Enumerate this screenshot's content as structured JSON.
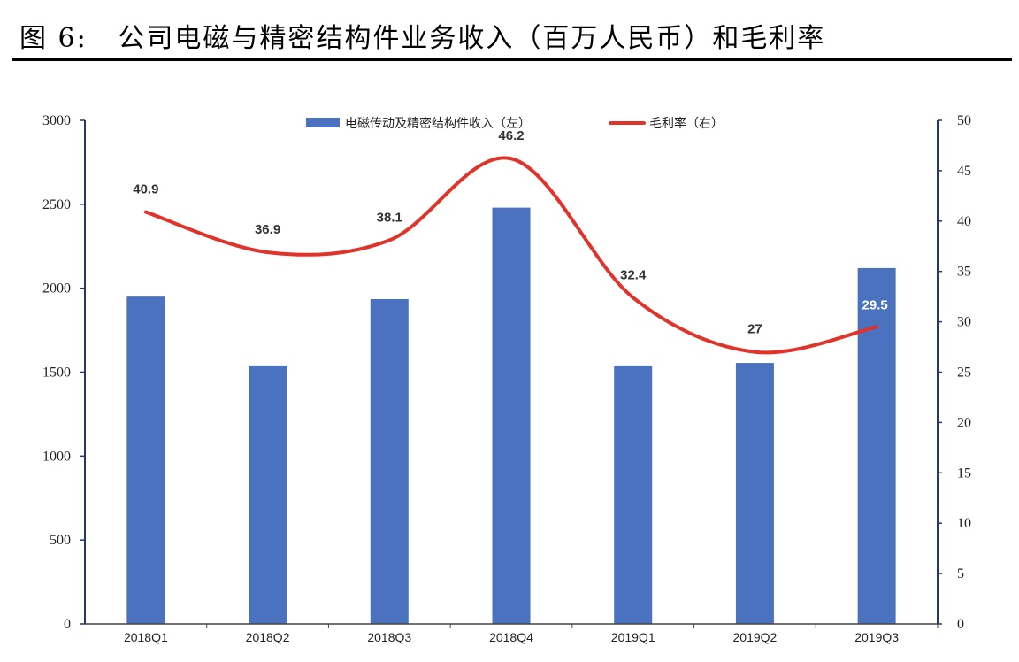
{
  "figure": {
    "label": "图 6:",
    "title": "公司电磁与精密结构件业务收入（百万人民币）和毛利率"
  },
  "colors": {
    "bar": "#4a72bf",
    "line": "#e0342b",
    "axis_right": "#1f3a6b"
  },
  "chart_data": {
    "type": "bar",
    "categories": [
      "2018Q1",
      "2018Q2",
      "2018Q3",
      "2018Q4",
      "2019Q1",
      "2019Q2",
      "2019Q3"
    ],
    "series": [
      {
        "name": "电磁传动及精密结构件收入（左）",
        "type": "bar",
        "axis": "left",
        "values": [
          1950,
          1540,
          1935,
          2480,
          1540,
          1555,
          2120
        ]
      },
      {
        "name": "毛利率（右）",
        "type": "line",
        "smooth": true,
        "axis": "right",
        "values": [
          40.9,
          36.9,
          38.1,
          46.2,
          32.4,
          27,
          29.5
        ],
        "labels": [
          "40.9",
          "36.9",
          "38.1",
          "46.2",
          "32.4",
          "27",
          "29.5"
        ]
      }
    ],
    "y_left": {
      "range": [
        0,
        3000
      ],
      "ticks": [
        "0",
        "500",
        "1000",
        "1500",
        "2000",
        "2500",
        "3000"
      ]
    },
    "y_right": {
      "range": [
        0,
        50
      ],
      "ticks": [
        "0",
        "5",
        "10",
        "15",
        "20",
        "25",
        "30",
        "35",
        "40",
        "45",
        "50"
      ]
    },
    "legend_position": "top",
    "grid": false
  }
}
